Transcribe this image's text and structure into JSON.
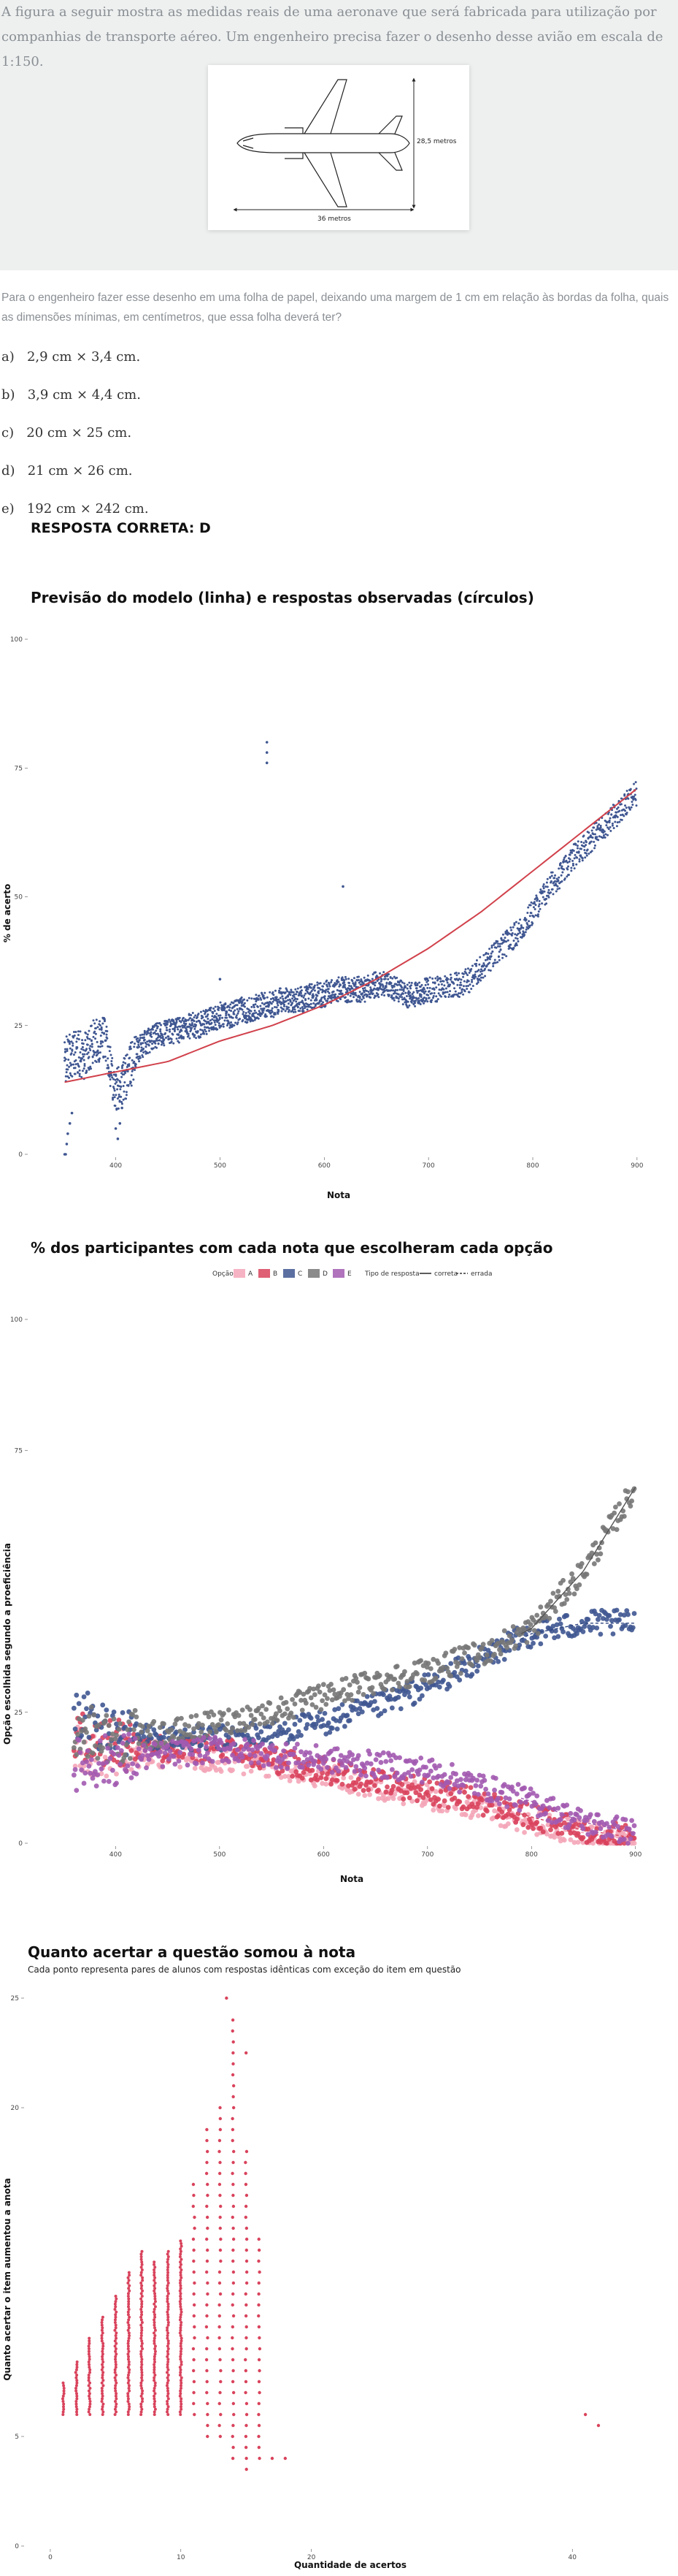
{
  "question": {
    "intro": "A figura a seguir mostra as medidas reais de uma aeronave que será fabricada para utilização por companhias de transporte aéreo. Um engenheiro precisa fazer o desenho desse avião em escala de 1:150.",
    "figure": {
      "height_label": "28,5 metros",
      "width_label": "36 metros"
    },
    "stem": "Para o engenheiro fazer esse desenho em uma folha de papel, deixando uma margem de 1 cm em relação às bordas da folha, quais as dimensões mínimas, em centímetros, que essa folha deverá ter?",
    "options": [
      {
        "letter": "a)",
        "text": "2,9 cm × 3,4 cm."
      },
      {
        "letter": "b)",
        "text": "3,9 cm × 4,4 cm."
      },
      {
        "letter": "c)",
        "text": "20 cm × 25 cm."
      },
      {
        "letter": "d)",
        "text": "21 cm × 26 cm."
      },
      {
        "letter": "e)",
        "text": "192 cm × 242 cm."
      }
    ],
    "answer": "RESPOSTA CORRETA: D"
  },
  "chart_data": [
    {
      "type": "scatter",
      "title": "Previsão do modelo (linha) e respostas observadas (círculos)",
      "xlabel": "Nota",
      "ylabel": "% de acerto",
      "x_ticks": [
        400,
        500,
        600,
        700,
        800,
        900
      ],
      "y_ticks": [
        0,
        25,
        50,
        75,
        100
      ],
      "xlim": [
        345,
        905
      ],
      "ylim": [
        0,
        100
      ],
      "grid": false,
      "colors": {
        "observed": "#3f5691",
        "model": "#d1414b"
      },
      "series": [
        {
          "kind": "observed-points",
          "x": [
            351,
            360,
            370,
            380,
            390,
            400,
            410,
            420,
            430,
            440,
            450,
            460,
            470,
            480,
            490,
            500,
            510,
            520,
            530,
            540,
            550,
            560,
            570,
            580,
            590,
            600,
            610,
            620,
            630,
            640,
            650,
            660,
            670,
            680,
            690,
            700,
            710,
            720,
            730,
            740,
            750,
            760,
            770,
            780,
            790,
            800,
            810,
            820,
            830,
            840,
            850,
            860,
            870,
            880,
            890,
            900
          ],
          "y": [
            18,
            20,
            19,
            22,
            23,
            12,
            15,
            20,
            22,
            23,
            24,
            24,
            25,
            25,
            26,
            27,
            27,
            28,
            28,
            29,
            29,
            30,
            30,
            30,
            31,
            31,
            32,
            32,
            32,
            32,
            33,
            33,
            32,
            31,
            31,
            32,
            32,
            33,
            33,
            34,
            36,
            38,
            40,
            42,
            44,
            47,
            50,
            53,
            55,
            58,
            60,
            62,
            64,
            66,
            68,
            70
          ]
        },
        {
          "kind": "model-line",
          "x": [
            351,
            400,
            450,
            500,
            550,
            600,
            650,
            700,
            750,
            800,
            850,
            900
          ],
          "y": [
            14,
            16,
            18,
            22,
            25,
            29,
            34,
            40,
            47,
            55,
            63,
            71
          ]
        }
      ],
      "outliers": {
        "x": [
          545,
          545,
          545,
          618
        ],
        "y": [
          80,
          78,
          76,
          52
        ]
      }
    },
    {
      "type": "scatter",
      "title": "% dos participantes com cada nota que escolheram cada opção",
      "xlabel": "Nota",
      "ylabel": "Opção escolhida segundo a proeficiência",
      "x_ticks": [
        400,
        500,
        600,
        700,
        800,
        900
      ],
      "y_ticks": [
        0,
        25,
        75,
        100
      ],
      "xlim": [
        345,
        910
      ],
      "ylim": [
        0,
        100
      ],
      "grid": false,
      "legend": {
        "option_title": "Opção",
        "options": [
          "A",
          "B",
          "C",
          "D",
          "E"
        ],
        "type_title": "Tipo de resposta",
        "types": [
          "correta",
          "errada"
        ]
      },
      "colors": {
        "A": "#f4a6b8",
        "B": "#d9435c",
        "C": "#3f5691",
        "D": "#777777",
        "E": "#a25ab0"
      },
      "categories": [
        360,
        400,
        450,
        500,
        550,
        600,
        650,
        700,
        750,
        800,
        850,
        900
      ],
      "series": [
        {
          "name": "A",
          "values": [
            18,
            17,
            17,
            16,
            15,
            13,
            11,
            9,
            7,
            4,
            2,
            0.5
          ]
        },
        {
          "name": "B",
          "values": [
            20,
            19,
            18,
            18,
            16,
            14,
            12,
            10,
            8,
            5,
            2.5,
            1
          ]
        },
        {
          "name": "C",
          "values": [
            25,
            21,
            20,
            20,
            21,
            23,
            26,
            30,
            35,
            40,
            42,
            42
          ]
        },
        {
          "name": "D",
          "values": [
            22,
            20,
            21,
            23,
            25,
            28,
            31,
            33,
            36,
            41,
            52,
            68
          ]
        },
        {
          "name": "E",
          "values": [
            15,
            16,
            17,
            18,
            17,
            16,
            15,
            14,
            11,
            8,
            4,
            2
          ]
        }
      ]
    },
    {
      "type": "scatter",
      "title": "Quanto acertar a questão somou à nota",
      "subtitle": "Cada ponto representa pares de alunos com respostas idênticas com exceção do item em questão",
      "xlabel": "Quantidade de acertos",
      "ylabel": "Quanto acertar o item aumentou a anota",
      "x_ticks": [
        0,
        10,
        20,
        40
      ],
      "y_ticks": [
        0,
        5,
        20,
        25
      ],
      "xlim": [
        -0.5,
        42
      ],
      "ylim": [
        0,
        25
      ],
      "grid": false,
      "colors": {
        "points": "#d9435c"
      },
      "columns": {
        "x": [
          1,
          2,
          3,
          4,
          5,
          6,
          7,
          8,
          9,
          10,
          11,
          12,
          13,
          14,
          15,
          16
        ],
        "y_min": [
          6,
          6,
          6,
          6,
          6,
          6,
          6,
          6,
          6,
          6,
          6,
          5,
          5,
          4,
          3.5,
          4
        ],
        "y_max": [
          7.5,
          8.5,
          9.5,
          10.5,
          11.5,
          12.5,
          13.5,
          13,
          13.5,
          14,
          16.5,
          19,
          20,
          24,
          18,
          14
        ]
      },
      "outliers": {
        "x": [
          13.5,
          15,
          17,
          18,
          41,
          42
        ],
        "y": [
          25,
          22.5,
          4,
          4,
          6,
          5.5
        ]
      }
    }
  ]
}
